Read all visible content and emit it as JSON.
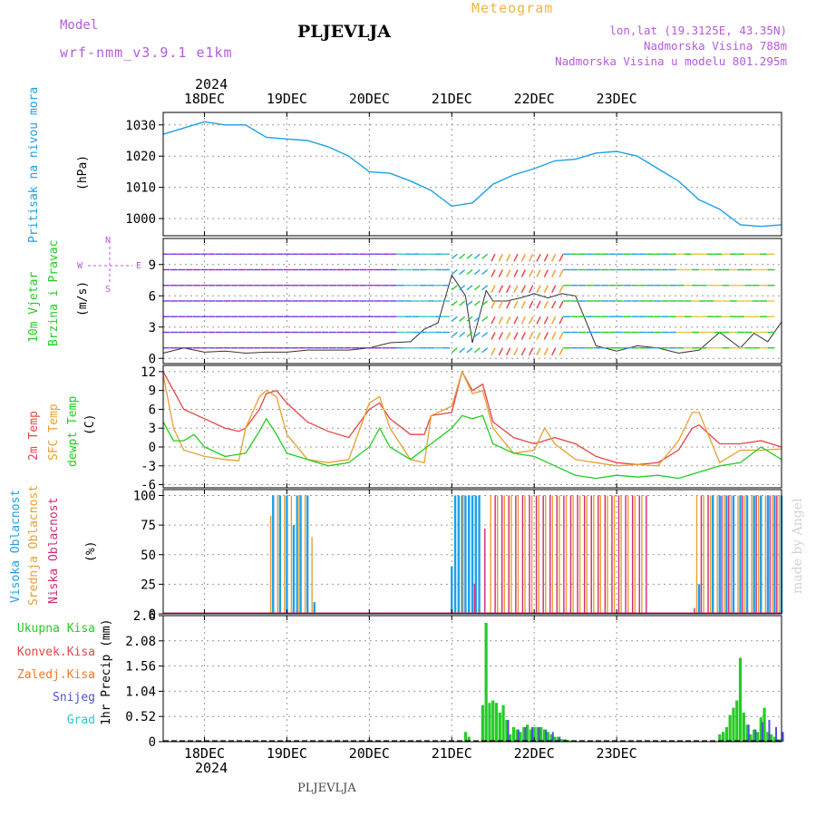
{
  "header": {
    "model_label": "Model",
    "model_name": "wrf-nmm_v3.9.1 e1km",
    "station": "PLJEVLJA",
    "product": "Meteogram",
    "coords": "lon,lat (19.3125E, 43.35N)",
    "elev": "Nadmorska Visina 788m",
    "elev_model": "Nadmorska Visina u modelu 801.295m",
    "year": "2024",
    "bottom_station": "PLJEVLJA",
    "watermark": "made by Angel"
  },
  "colors": {
    "pressure": "#1ea0e6",
    "t2m": "#e64646",
    "tsfc": "#e6a032",
    "dewpt": "#23cd23",
    "cloud_high": "#1ea0e6",
    "cloud_mid": "#e6a032",
    "cloud_low": "#d22878",
    "precip_total": "#23cd23",
    "precip_conv": "#e64646",
    "precip_frz": "#f07828",
    "precip_snow": "#5050dc",
    "precip_hail": "#28c8c8"
  },
  "chart_data": [
    {
      "type": "line",
      "panel": "pressure",
      "ylabel_lines": [
        "Pritisak na nivou mora",
        "(hPa)"
      ],
      "yticks": [
        1000,
        1010,
        1020,
        1030
      ],
      "ylim": [
        994.5,
        1034
      ],
      "x_day_labels": [
        "18DEC",
        "19DEC",
        "20DEC",
        "21DEC",
        "22DEC",
        "23DEC"
      ],
      "x_top_year": "2024",
      "grid": true,
      "series": [
        {
          "x": [
            0,
            6,
            12,
            18,
            24,
            30,
            36,
            42,
            48,
            54,
            60,
            66,
            72,
            78,
            84,
            90,
            96,
            102,
            108,
            114,
            120,
            126,
            132,
            138,
            144,
            150,
            156,
            162,
            168,
            174,
            180
          ],
          "values": [
            1027,
            1029,
            1031,
            1030,
            1030,
            1026,
            1025.5,
            1025,
            1023,
            1020,
            1015,
            1014.5,
            1012,
            1009,
            1004,
            1005,
            1011,
            1014,
            1016,
            1018.5,
            1019,
            1021,
            1021.5,
            1020,
            1016,
            1012,
            1006,
            1003,
            998,
            997.5,
            998
          ]
        }
      ]
    },
    {
      "type": "line",
      "panel": "wind",
      "ylabel_lines": [
        "10m Vjetar",
        "Brzina i Pravac",
        "(m/s)"
      ],
      "compass_labels": [
        "N",
        "S",
        "W",
        "E"
      ],
      "yticks": [
        0,
        3,
        6,
        9
      ],
      "ylim": [
        -0.5,
        11.5
      ],
      "grid": true,
      "series": [
        {
          "name": "speed",
          "x": [
            0,
            6,
            12,
            18,
            24,
            30,
            36,
            42,
            48,
            54,
            60,
            66,
            72,
            76,
            80,
            84,
            88,
            90,
            94,
            96,
            100,
            104,
            108,
            112,
            116,
            120,
            126,
            132,
            138,
            144,
            150,
            156,
            162,
            168,
            172,
            176,
            180
          ],
          "values": [
            0.5,
            1,
            0.6,
            0.7,
            0.5,
            0.6,
            0.6,
            0.8,
            0.8,
            0.8,
            1,
            1.5,
            1.6,
            2.8,
            3.4,
            8,
            6,
            1.5,
            6.5,
            5.5,
            5.5,
            5.8,
            6.2,
            5.8,
            6.2,
            6,
            1.2,
            0.7,
            1.2,
            1,
            0.5,
            0.8,
            2.5,
            1,
            2.4,
            1.6,
            3.5
          ]
        }
      ]
    },
    {
      "type": "line",
      "panel": "temperature",
      "ylabel_lines": [
        "2m Temp",
        "SFC Temp",
        "dewpt Temp",
        "(C)"
      ],
      "yticks": [
        -6,
        -3,
        0,
        3,
        6,
        9,
        12
      ],
      "ylim": [
        -6.5,
        13
      ],
      "grid": true,
      "series": [
        {
          "name": "2m Temp",
          "x": [
            0,
            3,
            6,
            12,
            18,
            22,
            24,
            28,
            30,
            33,
            36,
            42,
            48,
            54,
            60,
            63,
            66,
            72,
            76,
            78,
            84,
            87,
            90,
            93,
            96,
            102,
            108,
            114,
            120,
            126,
            132,
            138,
            144,
            150,
            154,
            156,
            162,
            168,
            174,
            180
          ],
          "values": [
            12,
            9,
            6,
            4.5,
            3,
            2.5,
            3,
            6,
            8.5,
            9,
            7,
            4,
            2.5,
            1.5,
            6,
            7,
            4.5,
            2,
            2,
            5,
            5.5,
            12,
            9,
            10,
            4,
            1.5,
            0.5,
            1.5,
            0.5,
            -1.5,
            -2.5,
            -2.8,
            -2.5,
            -0.5,
            3,
            3.5,
            0.5,
            0.5,
            1,
            0
          ]
        },
        {
          "name": "SFC Temp",
          "x": [
            0,
            3,
            6,
            12,
            18,
            22,
            24,
            28,
            30,
            33,
            36,
            42,
            48,
            54,
            60,
            63,
            66,
            72,
            76,
            78,
            84,
            87,
            90,
            93,
            96,
            102,
            108,
            111,
            114,
            120,
            126,
            132,
            138,
            144,
            150,
            154,
            156,
            162,
            168,
            174,
            180
          ],
          "values": [
            11.5,
            3,
            -0.5,
            -1.5,
            -2,
            -2.2,
            3,
            8,
            9,
            8,
            2,
            -2,
            -2.5,
            -2,
            7,
            8,
            3,
            -2,
            -2.5,
            5,
            6.5,
            12,
            8.5,
            9,
            3,
            -1,
            -0.5,
            3,
            0.5,
            -2,
            -2.5,
            -3,
            -2.8,
            -3,
            1,
            5.5,
            5.5,
            -2.5,
            -0.5,
            -0.5,
            -0.3
          ]
        },
        {
          "name": "dewpt Temp",
          "x": [
            0,
            3,
            6,
            9,
            12,
            18,
            24,
            28,
            30,
            33,
            36,
            42,
            48,
            54,
            60,
            63,
            66,
            72,
            78,
            84,
            87,
            90,
            93,
            96,
            102,
            108,
            114,
            120,
            126,
            132,
            138,
            144,
            150,
            156,
            162,
            168,
            174,
            180
          ],
          "values": [
            4,
            1,
            1,
            2,
            0,
            -1.5,
            -1,
            2.5,
            4.5,
            2,
            -1,
            -2,
            -3,
            -2.5,
            0,
            3,
            0,
            -2,
            0.5,
            3,
            5,
            4.5,
            5,
            0.5,
            -1,
            -1.5,
            -3,
            -4.5,
            -5,
            -4.5,
            -4.8,
            -4.5,
            -5,
            -4,
            -3,
            -2.5,
            0,
            -2
          ]
        }
      ]
    },
    {
      "type": "bar",
      "panel": "cloud",
      "ylabel_lines": [
        "Visoka Oblacnost",
        "Srednja Oblacnost",
        "Niska Oblacnost",
        "(%)"
      ],
      "yticks": [
        0,
        25,
        50,
        75,
        100
      ],
      "ylim": [
        0,
        105
      ],
      "grid": true,
      "series": [
        {
          "name": "Visoka Oblacnost",
          "x": [
            32,
            34,
            36,
            38,
            39,
            40,
            42,
            44,
            84,
            85,
            86,
            87,
            88,
            89,
            90,
            91,
            92,
            156,
            160,
            162,
            164,
            166,
            168,
            170,
            172,
            174,
            176,
            178,
            180
          ],
          "values": [
            100,
            100,
            100,
            75,
            100,
            100,
            100,
            10,
            40,
            100,
            100,
            100,
            100,
            100,
            100,
            100,
            100,
            25,
            100,
            100,
            100,
            100,
            100,
            100,
            100,
            100,
            100,
            100,
            100
          ]
        },
        {
          "name": "Srednja Oblacnost",
          "x": [
            31,
            33,
            35,
            37,
            39,
            41,
            43,
            87,
            95,
            97,
            99,
            101,
            103,
            105,
            107,
            109,
            111,
            113,
            115,
            117,
            119,
            121,
            123,
            125,
            127,
            129,
            131,
            133,
            135,
            137,
            139,
            155,
            157,
            159,
            161,
            163,
            165,
            167,
            169,
            171,
            173,
            175,
            177,
            179
          ],
          "values": [
            83,
            100,
            100,
            100,
            100,
            100,
            65,
            100,
            100,
            100,
            100,
            100,
            100,
            100,
            100,
            100,
            100,
            100,
            100,
            100,
            100,
            100,
            100,
            100,
            100,
            100,
            100,
            100,
            100,
            100,
            100,
            100,
            100,
            100,
            100,
            100,
            100,
            100,
            100,
            100,
            100,
            100,
            100,
            100
          ]
        },
        {
          "name": "Niska Oblacnost",
          "x": [
            90,
            93,
            96,
            98,
            100,
            102,
            104,
            106,
            108,
            110,
            112,
            114,
            116,
            118,
            120,
            122,
            124,
            126,
            128,
            130,
            132,
            134,
            136,
            138,
            140,
            154,
            156,
            158,
            162,
            164,
            168,
            172,
            176,
            178
          ],
          "values": [
            25,
            72,
            100,
            100,
            100,
            100,
            100,
            100,
            100,
            100,
            100,
            100,
            100,
            100,
            100,
            100,
            100,
            100,
            100,
            100,
            100,
            100,
            100,
            100,
            100,
            5,
            100,
            100,
            100,
            100,
            100,
            100,
            100,
            100
          ]
        }
      ]
    },
    {
      "type": "bar",
      "panel": "precip",
      "ylabel_lines": [
        "1hr Precip (mm)"
      ],
      "legend_left": [
        "Ukupna Kisa",
        "Konvek.Kisa",
        "Zaledj.Kisa",
        "Snijeg",
        "Grad"
      ],
      "yticks": [
        0,
        0.52,
        1.04,
        1.56,
        2.08,
        2.6
      ],
      "ytick_labels": [
        "0",
        "0.52",
        "1.04",
        "1.56",
        "2.08",
        "2.6"
      ],
      "ylim": [
        0,
        2.6
      ],
      "x_day_labels": [
        "18DEC",
        "19DEC",
        "20DEC",
        "21DEC",
        "22DEC",
        "23DEC"
      ],
      "x_bottom_year": "2024",
      "grid": true,
      "series": [
        {
          "name": "Ukupna Kisa",
          "x": [
            88,
            89,
            93,
            94,
            95,
            96,
            97,
            98,
            99,
            100,
            101,
            102,
            103,
            104,
            105,
            106,
            107,
            108,
            109,
            110,
            111,
            112,
            113,
            114,
            115,
            116,
            117,
            118,
            119,
            120,
            162,
            163,
            164,
            165,
            166,
            167,
            168,
            169,
            170,
            171,
            172,
            173,
            174,
            175,
            176,
            177,
            178,
            179,
            180
          ],
          "values": [
            0.2,
            0.1,
            0.75,
            2.45,
            0.8,
            0.85,
            0.8,
            0.6,
            0.75,
            0.45,
            0.15,
            0.3,
            0.25,
            0.2,
            0.3,
            0.35,
            0.25,
            0.3,
            0.3,
            0.3,
            0.25,
            0.2,
            0.15,
            0.1,
            0.1,
            0.05,
            0.05,
            0.03,
            0.02,
            0.02,
            0.15,
            0.2,
            0.3,
            0.55,
            0.7,
            0.85,
            1.73,
            0.6,
            0.35,
            0.15,
            0.25,
            0.2,
            0.5,
            0.7,
            0.2,
            0.15,
            0.1,
            0.05,
            0.05
          ]
        },
        {
          "name": "Snijeg",
          "x": [
            100,
            103,
            105,
            107,
            109,
            111,
            113,
            115,
            170,
            172,
            174,
            176,
            178,
            180
          ],
          "values": [
            0.45,
            0.25,
            0.3,
            0.3,
            0.3,
            0.25,
            0.2,
            0.1,
            0.35,
            0.25,
            0.4,
            0.45,
            0.3,
            0.2
          ]
        }
      ]
    }
  ]
}
